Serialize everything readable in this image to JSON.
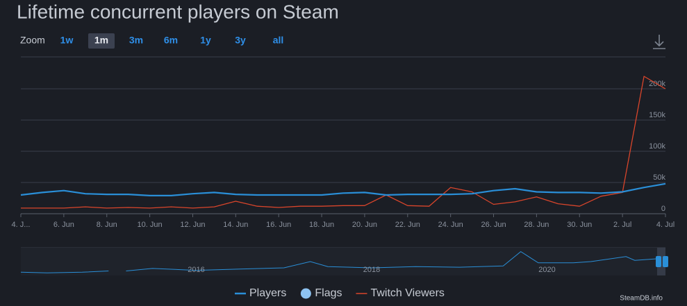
{
  "title": "Lifetime concurrent players on Steam",
  "zoom": {
    "label": "Zoom",
    "options": [
      "1w",
      "1m",
      "3m",
      "6m",
      "1y",
      "3y",
      "all"
    ],
    "selected": "1m"
  },
  "credit": "SteamDB.info",
  "chart_data": {
    "type": "line",
    "categories": [
      "4. J...",
      null,
      "6. Jun",
      null,
      "8. Jun",
      null,
      "10. Jun",
      null,
      "12. Jun",
      null,
      "14. Jun",
      null,
      "16. Jun",
      null,
      "18. Jun",
      null,
      "20. Jun",
      null,
      "22. Jun",
      null,
      "24. Jun",
      null,
      "26. Jun",
      null,
      "28. Jun",
      null,
      "30. Jun",
      null,
      "2. Jul",
      null,
      "4. Jul"
    ],
    "series": [
      {
        "name": "Players",
        "color": "#2a8fd8",
        "width": 2.2,
        "values": [
          30000,
          34000,
          37000,
          32000,
          31000,
          31000,
          29000,
          29000,
          32000,
          34000,
          31000,
          30000,
          30000,
          30000,
          30000,
          33000,
          34000,
          30000,
          31000,
          31000,
          31000,
          32000,
          37000,
          40000,
          35000,
          34000,
          34000,
          33000,
          35000,
          42000,
          48000
        ]
      },
      {
        "name": "Twitch Viewers",
        "color": "#d9452b",
        "width": 1.3,
        "values": [
          9000,
          9000,
          9000,
          11000,
          9000,
          10000,
          9000,
          11000,
          9000,
          11000,
          20000,
          12000,
          10000,
          12000,
          12000,
          13000,
          13000,
          30000,
          13000,
          12000,
          42000,
          35000,
          15000,
          19000,
          27000,
          16000,
          12000,
          28000,
          34000,
          220000,
          200000
        ]
      }
    ],
    "flags": {
      "name": "Flags",
      "color": "#8ec3f2"
    },
    "ylim": [
      0,
      250000
    ],
    "yticks": [
      0,
      {
        "value": 50000,
        "label": "50k"
      },
      {
        "value": 100000,
        "label": "100k"
      },
      {
        "value": 150000,
        "label": "150k"
      },
      {
        "value": 200000,
        "label": "200k"
      }
    ],
    "grid": true,
    "navigator": {
      "color": "#2a8fd8",
      "x": [
        2014.0,
        2014.3,
        2014.7,
        2015.0,
        2015.1,
        2015.2,
        2015.5,
        2016.0,
        2016.5,
        2017.0,
        2017.3,
        2017.5,
        2018.0,
        2018.5,
        2019.0,
        2019.5,
        2019.7,
        2019.9,
        2020.3,
        2020.5,
        2020.9,
        2021.0,
        2021.3
      ],
      "values": [
        3000,
        2000,
        3000,
        5000,
        null,
        5000,
        9000,
        6000,
        8000,
        10000,
        20000,
        12000,
        10000,
        12000,
        11000,
        13000,
        36000,
        18000,
        18000,
        20000,
        28000,
        22000,
        25000
      ],
      "xlim": [
        2014.0,
        2021.35
      ],
      "ylim": [
        0,
        40000
      ],
      "xticks": [
        2016,
        2018,
        2020
      ]
    }
  }
}
